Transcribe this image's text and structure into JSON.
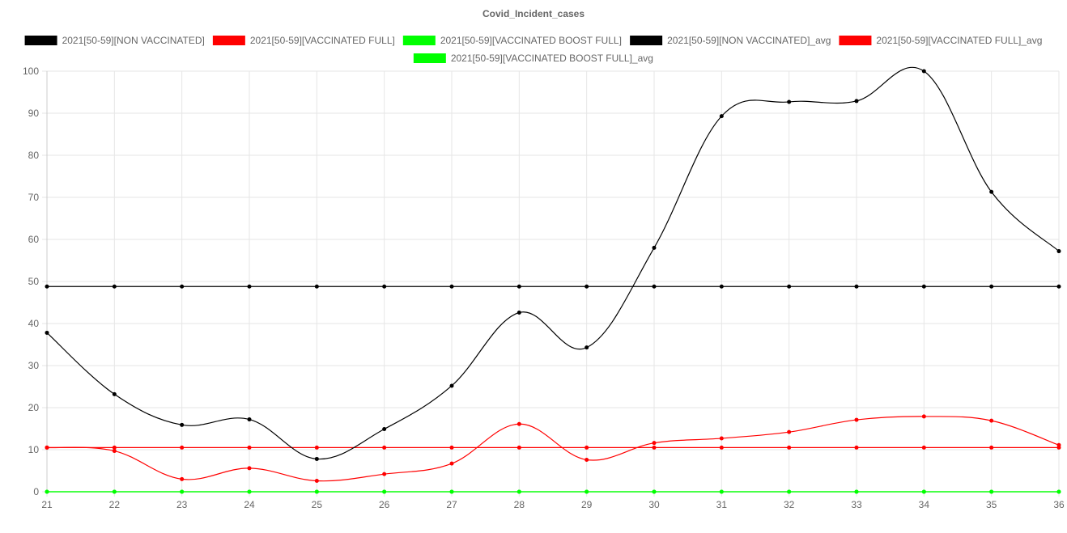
{
  "chart_data": {
    "type": "line",
    "title": "Covid_Incident_cases",
    "xlabel": "",
    "ylabel": "",
    "x": [
      21,
      22,
      23,
      24,
      25,
      26,
      27,
      28,
      29,
      30,
      31,
      32,
      33,
      34,
      35,
      36
    ],
    "ylim": [
      0,
      100
    ],
    "yticks": [
      0,
      10,
      20,
      30,
      40,
      50,
      60,
      70,
      80,
      90,
      100
    ],
    "grid": true,
    "legend_position": "top",
    "series": [
      {
        "name": "2021[50-59][NON VACCINATED]",
        "color": "#000000",
        "values": [
          37.8,
          23.2,
          15.9,
          17.2,
          7.8,
          14.9,
          25.2,
          42.6,
          34.3,
          58.0,
          89.3,
          92.7,
          92.9,
          100.0,
          71.3,
          57.2
        ]
      },
      {
        "name": "2021[50-59][VACCINATED FULL]",
        "color": "#ff0000",
        "values": [
          10.5,
          9.7,
          3.0,
          5.6,
          2.6,
          4.2,
          6.7,
          16.1,
          7.6,
          11.6,
          12.7,
          14.2,
          17.1,
          17.9,
          16.9,
          11.1
        ]
      },
      {
        "name": "2021[50-59][VACCINATED BOOST FULL]",
        "color": "#00ff00",
        "values": [
          0,
          0,
          0,
          0,
          0,
          0,
          0,
          0,
          0,
          0,
          0,
          0,
          0,
          0,
          0,
          0
        ]
      },
      {
        "name": "2021[50-59][NON VACCINATED]_avg",
        "color": "#000000",
        "values": [
          48.8,
          48.8,
          48.8,
          48.8,
          48.8,
          48.8,
          48.8,
          48.8,
          48.8,
          48.8,
          48.8,
          48.8,
          48.8,
          48.8,
          48.8,
          48.8
        ]
      },
      {
        "name": "2021[50-59][VACCINATED FULL]_avg",
        "color": "#ff0000",
        "values": [
          10.5,
          10.5,
          10.5,
          10.5,
          10.5,
          10.5,
          10.5,
          10.5,
          10.5,
          10.5,
          10.5,
          10.5,
          10.5,
          10.5,
          10.5,
          10.5
        ]
      },
      {
        "name": "2021[50-59][VACCINATED BOOST FULL]_avg",
        "color": "#00ff00",
        "values": [
          0,
          0,
          0,
          0,
          0,
          0,
          0,
          0,
          0,
          0,
          0,
          0,
          0,
          0,
          0,
          0
        ]
      }
    ]
  }
}
